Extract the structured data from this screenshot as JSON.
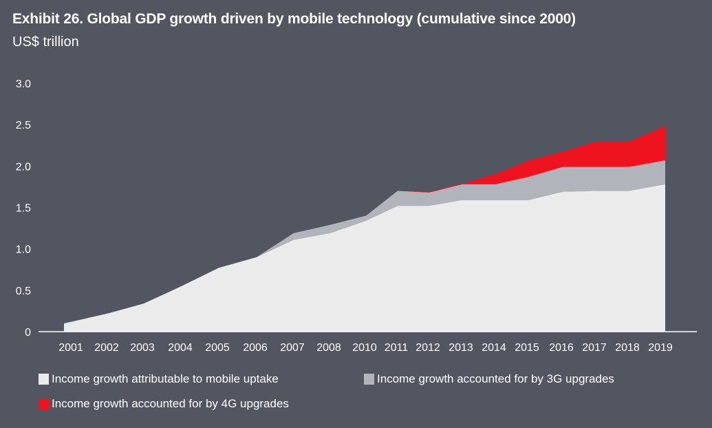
{
  "chart_data": {
    "type": "area",
    "stacked": true,
    "title": "Exhibit 26. Global GDP growth driven by mobile technology (cumulative since 2000)",
    "subtitle": "US$ trillion",
    "xlabel": "",
    "ylabel": "US$ trillion",
    "ylim": [
      0,
      3.0
    ],
    "yticks": [
      "0",
      "0.5",
      "1.0",
      "1.5",
      "2.0",
      "2.5",
      "3.0"
    ],
    "ytick_values": [
      0,
      0.5,
      1.0,
      1.5,
      2.0,
      2.5,
      3.0
    ],
    "grid": false,
    "categories": [
      "2001",
      "2002",
      "2003",
      "2004",
      "2005",
      "2006",
      "2007",
      "2008",
      "2010",
      "2011",
      "2012",
      "2013",
      "2014",
      "2015",
      "2016",
      "2017",
      "2018",
      "2019"
    ],
    "series": [
      {
        "name": "Income growth attributable to mobile uptake",
        "color": "#ebebeb",
        "values": [
          0.1,
          0.22,
          0.34,
          0.55,
          0.77,
          0.9,
          1.11,
          1.19,
          1.34,
          1.52,
          1.52,
          1.59,
          1.59,
          1.59,
          1.69,
          1.7,
          1.7,
          1.78
        ]
      },
      {
        "name": "Income growth accounted for by 3G upgrades",
        "color": "#b2b4bb",
        "values": [
          0.0,
          0.0,
          0.0,
          0.0,
          0.0,
          0.0,
          0.08,
          0.1,
          0.06,
          0.18,
          0.16,
          0.19,
          0.19,
          0.28,
          0.3,
          0.29,
          0.29,
          0.29
        ]
      },
      {
        "name": "Income growth accounted for by 4G upgrades",
        "color": "#ee141f",
        "values": [
          0.0,
          0.0,
          0.0,
          0.0,
          0.0,
          0.0,
          0.0,
          0.0,
          0.0,
          0.0,
          0.01,
          0.01,
          0.13,
          0.2,
          0.19,
          0.31,
          0.31,
          0.42
        ]
      }
    ],
    "legend_position": "bottom"
  },
  "colors": {
    "background": "#525661",
    "text": "#ffffff",
    "mobile_uptake": "#ebebeb",
    "upgrades_3g": "#b2b4bb",
    "upgrades_4g": "#ee141f"
  }
}
